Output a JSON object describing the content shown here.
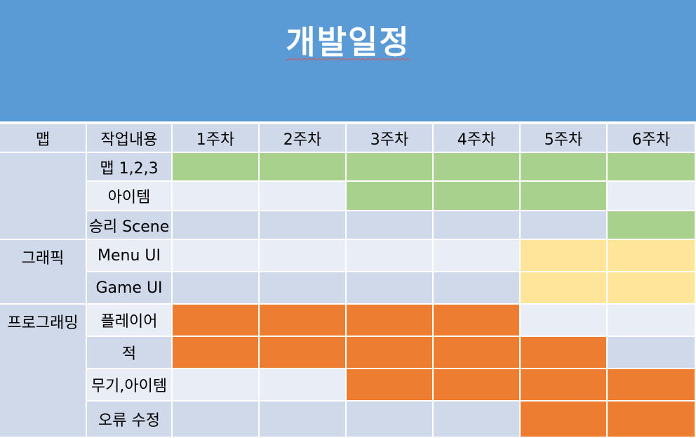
{
  "title": "개발일정",
  "header": {
    "category": "맵",
    "task": "작업내용",
    "weeks": [
      "1주차",
      "2주차",
      "3주차",
      "4주차",
      "5주차",
      "6주차"
    ]
  },
  "categories": [
    {
      "label": "맵",
      "rows": [
        0,
        1,
        2
      ]
    },
    {
      "label": "그래픽",
      "rows": [
        3,
        4
      ]
    },
    {
      "label": "프로그래밍",
      "rows": [
        5,
        6,
        7,
        8
      ]
    }
  ],
  "rows": [
    {
      "task": "맵 1,2,3",
      "cells": [
        "g",
        "g",
        "g",
        "g",
        "g",
        "g"
      ]
    },
    {
      "task": "아이템",
      "cells": [
        "",
        "",
        "g",
        "g",
        "g",
        ""
      ]
    },
    {
      "task": "승리 Scene",
      "cells": [
        "",
        "",
        "",
        "",
        "",
        "g"
      ]
    },
    {
      "task": "Menu UI",
      "cells": [
        "",
        "",
        "",
        "",
        "y",
        "y"
      ]
    },
    {
      "task": "Game UI",
      "cells": [
        "",
        "",
        "",
        "",
        "y",
        "y"
      ]
    },
    {
      "task": "플레이어",
      "cells": [
        "o",
        "o",
        "o",
        "o",
        "",
        ""
      ]
    },
    {
      "task": "적",
      "cells": [
        "o",
        "o",
        "o",
        "o",
        "o",
        ""
      ]
    },
    {
      "task": "무기,아이템",
      "cells": [
        "",
        "",
        "o",
        "o",
        "o",
        "o"
      ]
    },
    {
      "task": "오류 수정",
      "cells": [
        "",
        "",
        "",
        "",
        "o",
        "o"
      ]
    }
  ],
  "colors": {
    "title_bg": "#5b9bd5",
    "category_bg": "#cfd9ea",
    "header_bg": "#cfd9ea",
    "row_band_dark": "#cfd9ea",
    "row_band_light": "#e9edf5",
    "green": "#a9d18e",
    "yellow": "#ffe599",
    "orange": "#ed7d31"
  }
}
